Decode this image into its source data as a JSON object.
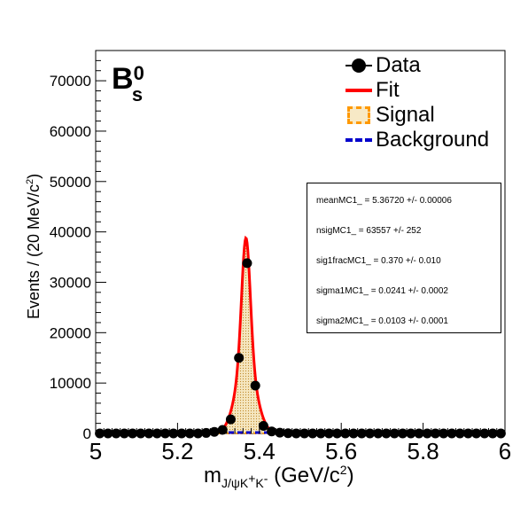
{
  "particle_label": {
    "main": "B",
    "sup": "0",
    "sub": "s"
  },
  "legend": [
    {
      "key": "data",
      "label": "Data"
    },
    {
      "key": "fit",
      "label": "Fit"
    },
    {
      "key": "signal",
      "label": "Signal"
    },
    {
      "key": "background",
      "label": "Background"
    }
  ],
  "params": [
    "meanMC1_ =  5.36720 +/- 0.00006",
    "nsigMC1_ =  63557 +/- 252",
    "sig1fracMC1_ =  0.370 +/- 0.010",
    "sigma1MC1_ =  0.0241 +/- 0.0002",
    "sigma2MC1_ =  0.0103 +/- 0.0001"
  ],
  "axis": {
    "xlabel_main": "m",
    "xlabel_sub": "J/ψK",
    "xlabel_sup1": "+",
    "xlabel_k": "K",
    "xlabel_sup2": "-",
    "xlabel_units": " (GeV/c",
    "xlabel_units_sup": "2",
    "xlabel_close": ")",
    "ylabel": "Events / (20 MeV/c",
    "ylabel_sup": "2",
    "ylabel_close": ")"
  },
  "colors": {
    "data": "#000000",
    "fit": "#ff0000",
    "signal_line": "#ff9900",
    "signal_fill": "#f5e6bf",
    "background": "#0000cc"
  },
  "chart_data": {
    "type": "line",
    "xlim": [
      5.0,
      6.0
    ],
    "ylim": [
      0,
      76000
    ],
    "x_ticks": [
      5,
      5.2,
      5.4,
      5.6,
      5.8,
      6
    ],
    "x_tick_labels": [
      "5",
      "5.2",
      "5.4",
      "5.6",
      "5.8",
      "6"
    ],
    "y_ticks": [
      0,
      10000,
      20000,
      30000,
      40000,
      50000,
      60000,
      70000
    ],
    "y_tick_labels": [
      "0",
      "10000",
      "20000",
      "30000",
      "40000",
      "50000",
      "60000",
      "70000"
    ],
    "series": [
      {
        "name": "Data",
        "x": [
          5.01,
          5.03,
          5.05,
          5.07,
          5.09,
          5.11,
          5.13,
          5.15,
          5.17,
          5.19,
          5.21,
          5.23,
          5.25,
          5.27,
          5.29,
          5.31,
          5.33,
          5.35,
          5.37,
          5.39,
          5.41,
          5.43,
          5.45,
          5.47,
          5.49,
          5.51,
          5.53,
          5.55,
          5.57,
          5.59,
          5.61,
          5.63,
          5.65,
          5.67,
          5.69,
          5.71,
          5.73,
          5.75,
          5.77,
          5.79,
          5.81,
          5.83,
          5.85,
          5.87,
          5.89,
          5.91,
          5.93,
          5.95,
          5.97,
          5.99
        ],
        "y": [
          0,
          0,
          0,
          0,
          0,
          0,
          0,
          0,
          0,
          0,
          0,
          0,
          0,
          100,
          300,
          700,
          2800,
          15000,
          33800,
          9500,
          1500,
          400,
          150,
          50,
          0,
          0,
          0,
          0,
          0,
          0,
          0,
          0,
          0,
          0,
          0,
          0,
          0,
          0,
          0,
          0,
          0,
          0,
          0,
          0,
          0,
          0,
          0,
          0,
          0,
          0
        ]
      },
      {
        "name": "Fit",
        "mean": 5.3672,
        "nsig": 63557,
        "sig1frac": 0.37,
        "sigma1": 0.0241,
        "sigma2": 0.0103,
        "peak": 38800
      },
      {
        "name": "Signal",
        "mean": 5.3672,
        "sig1frac": 0.37,
        "sigma1": 0.0241,
        "sigma2": 0.0103,
        "peak": 38800
      },
      {
        "name": "Background",
        "y": 0
      }
    ]
  }
}
